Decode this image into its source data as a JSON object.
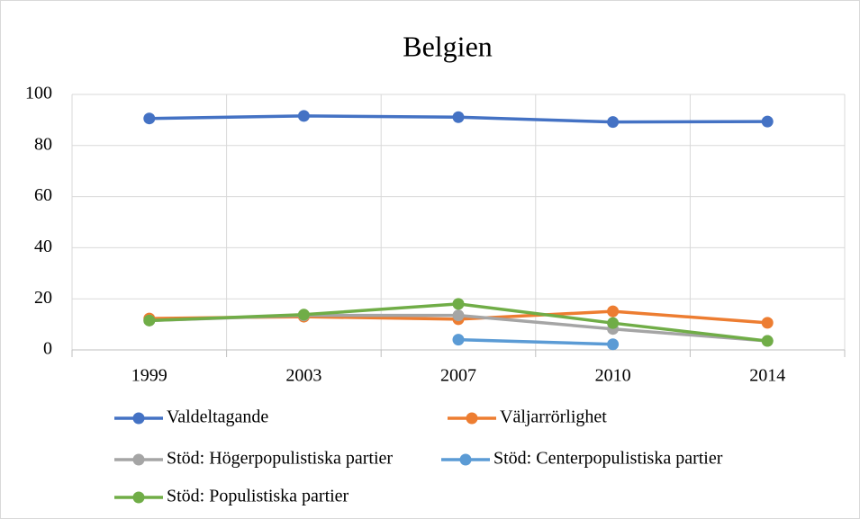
{
  "chart_data": {
    "type": "line",
    "title": "Belgien",
    "categories": [
      "1999",
      "2003",
      "2007",
      "2010",
      "2014"
    ],
    "series": [
      {
        "name": "Valdeltagande",
        "color": "#4472c4",
        "values": [
          90.6,
          91.6,
          91.1,
          89.2,
          89.4
        ]
      },
      {
        "name": "Väljarrörlighet",
        "color": "#ed7d31",
        "values": [
          12.3,
          13,
          12,
          15.1,
          10.6
        ]
      },
      {
        "name": "Stöd: Högerpopulistiska partier",
        "color": "#a5a5a5",
        "values": [
          11.5,
          13.5,
          13.5,
          8.2,
          3.5
        ]
      },
      {
        "name": "Stöd: Centerpopulistiska partier",
        "color": "#5b9bd5",
        "values": [
          null,
          null,
          4,
          2.2,
          null
        ]
      },
      {
        "name": "Stöd: Populistiska partier",
        "color": "#70ad47",
        "values": [
          11.5,
          13.8,
          18,
          10.5,
          3.5
        ]
      }
    ],
    "ylim": [
      0,
      100
    ],
    "yticks": [
      0,
      20,
      40,
      60,
      80,
      100
    ],
    "grid": true,
    "legend": "bottom"
  }
}
